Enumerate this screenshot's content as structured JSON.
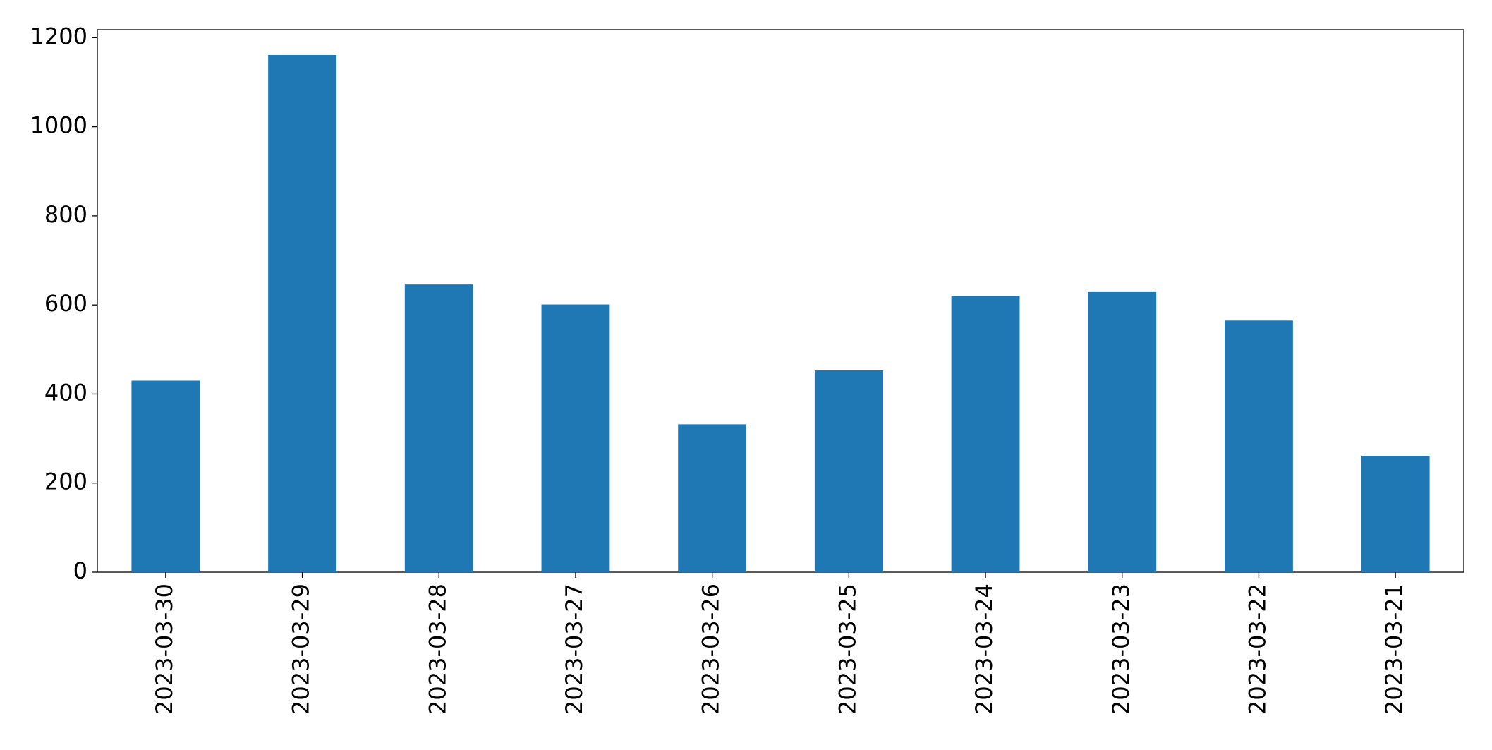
{
  "chart_data": {
    "type": "bar",
    "categories": [
      "2023-03-30",
      "2023-03-29",
      "2023-03-28",
      "2023-03-27",
      "2023-03-26",
      "2023-03-25",
      "2023-03-24",
      "2023-03-23",
      "2023-03-22",
      "2023-03-21"
    ],
    "values": [
      430,
      1161,
      646,
      601,
      332,
      453,
      620,
      629,
      565,
      261
    ],
    "color": "#1f77b4",
    "ylim": [
      0,
      1218
    ],
    "yticks": [
      0,
      200,
      400,
      600,
      800,
      1000,
      1200
    ],
    "grid": false
  }
}
